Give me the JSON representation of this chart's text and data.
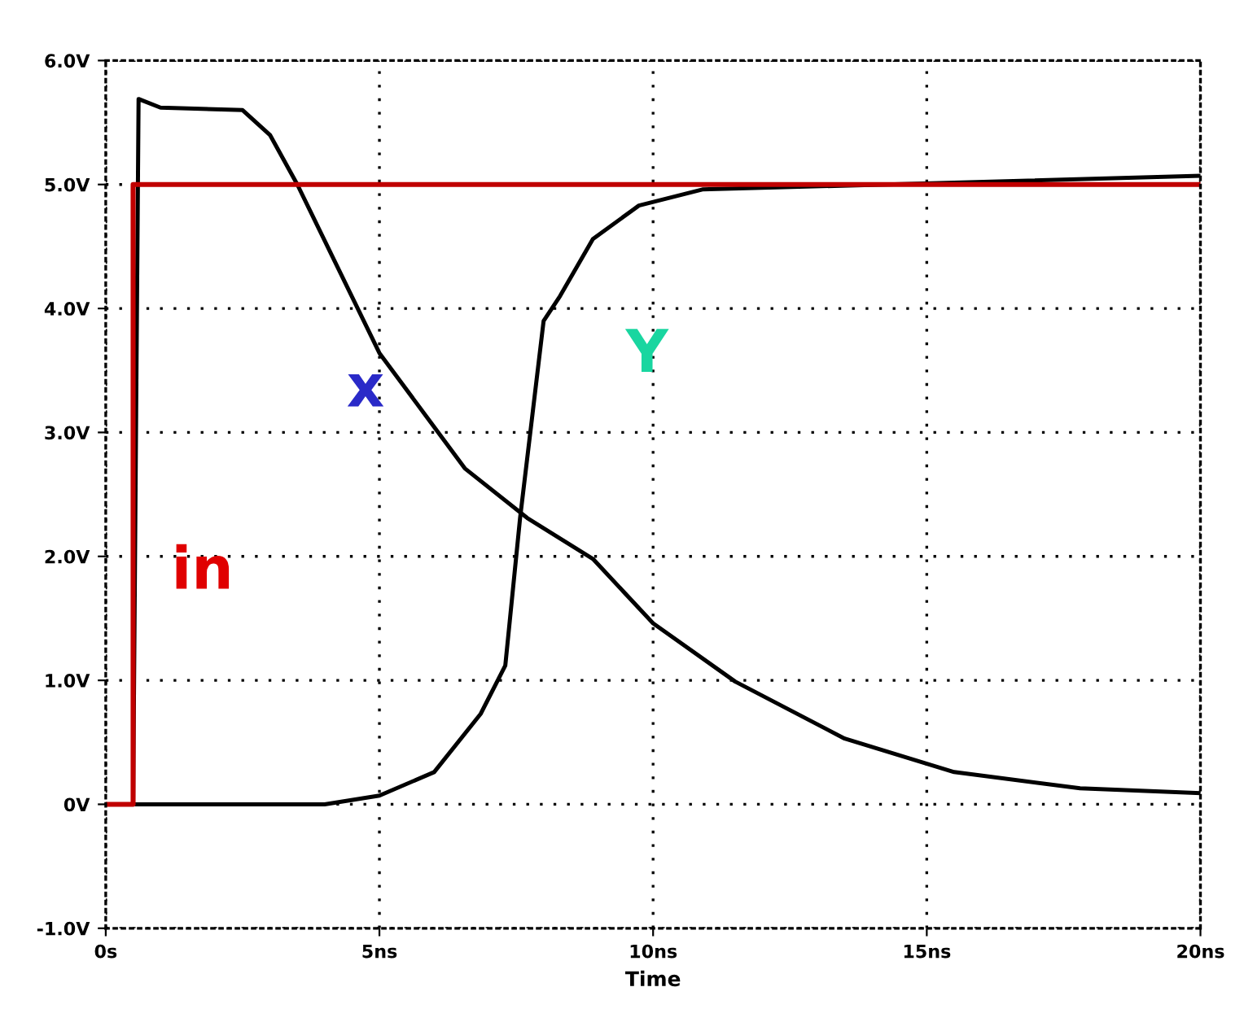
{
  "chart_data": {
    "type": "line",
    "xlabel": "Time",
    "xlim": [
      0,
      20
    ],
    "ylim": [
      -1,
      6
    ],
    "xticks": [
      {
        "value": 0,
        "label": "0s"
      },
      {
        "value": 5,
        "label": "5ns"
      },
      {
        "value": 10,
        "label": "10ns"
      },
      {
        "value": 15,
        "label": "15ns"
      },
      {
        "value": 20,
        "label": "20ns"
      }
    ],
    "yticks": [
      {
        "value": -1,
        "label": "-1.0V"
      },
      {
        "value": 0,
        "label": "0V"
      },
      {
        "value": 1,
        "label": "1.0V"
      },
      {
        "value": 2,
        "label": "2.0V"
      },
      {
        "value": 3,
        "label": "3.0V"
      },
      {
        "value": 4,
        "label": "4.0V"
      },
      {
        "value": 5,
        "label": "5.0V"
      },
      {
        "value": 6,
        "label": "6.0V"
      }
    ],
    "grid": true,
    "series": [
      {
        "color": "#000000",
        "x": [
          0,
          0.5,
          0.6,
          1.0,
          2.5,
          3.0,
          3.5,
          5.0,
          6.56,
          7.7,
          8.9,
          10.0,
          11.5,
          13.5,
          15.5,
          17.8,
          20.0
        ],
        "values": [
          0,
          0,
          5.69,
          5.62,
          5.6,
          5.4,
          5.0,
          3.64,
          2.71,
          2.31,
          1.98,
          1.46,
          0.99,
          0.53,
          0.26,
          0.13,
          0.09
        ]
      },
      {
        "color": "#000000",
        "x": [
          0,
          4.0,
          5.0,
          6.0,
          6.85,
          7.3,
          7.57,
          8.0,
          8.3,
          8.9,
          9.74,
          10.9,
          20.0
        ],
        "values": [
          0,
          0,
          0.07,
          0.26,
          0.73,
          1.12,
          2.31,
          3.9,
          4.1,
          4.56,
          4.83,
          4.96,
          5.07
        ]
      },
      {
        "color": "#c00000",
        "x": [
          0,
          0.5,
          0.5,
          20
        ],
        "values": [
          0,
          0,
          5,
          5
        ]
      }
    ],
    "annotations": [
      "in",
      "x",
      "Y"
    ]
  }
}
